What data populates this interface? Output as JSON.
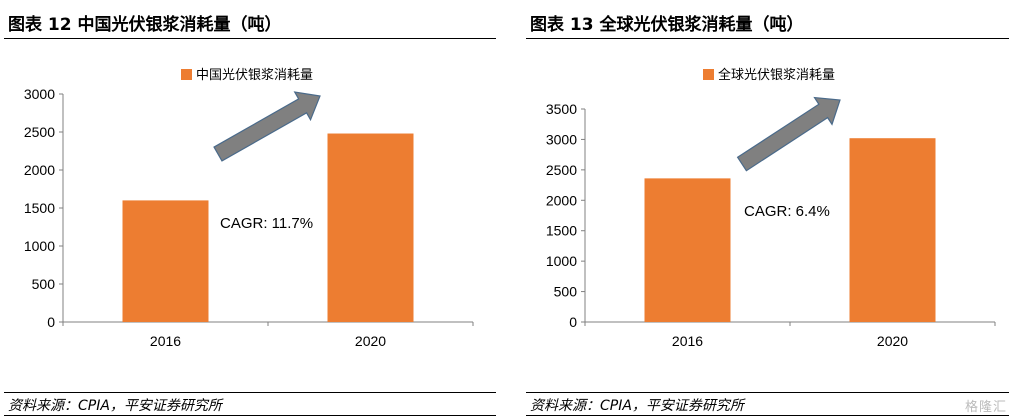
{
  "figures": [
    {
      "title": "图表 12   中国光伏银浆消耗量（吨）",
      "source": "资料来源：CPIA，平安证券研究所"
    },
    {
      "title": "图表 13   全球光伏银浆消耗量（吨）",
      "source": "资料来源：CPIA，平安证券研究所"
    }
  ],
  "watermark": "格隆汇",
  "chart_data": [
    {
      "type": "bar",
      "categories": [
        "2016",
        "2020"
      ],
      "series": [
        {
          "name": "中国光伏银浆消耗量",
          "values": [
            1600,
            2480
          ]
        }
      ],
      "ylim": [
        0,
        3000
      ],
      "yticks": [
        0,
        500,
        1000,
        1500,
        2000,
        2500,
        3000
      ],
      "annotation": "CAGR: 11.7%",
      "bar_color": "#ED7D31",
      "arrow_color": "#808080",
      "legend": "top-center",
      "grid": false
    },
    {
      "type": "bar",
      "categories": [
        "2016",
        "2020"
      ],
      "series": [
        {
          "name": "全球光伏银浆消耗量",
          "values": [
            2360,
            3020
          ]
        }
      ],
      "ylim": [
        0,
        3500
      ],
      "yticks": [
        0,
        500,
        1000,
        1500,
        2000,
        2500,
        3000,
        3500
      ],
      "annotation": "CAGR: 6.4%",
      "bar_color": "#ED7D31",
      "arrow_color": "#808080",
      "legend": "top-center",
      "grid": false
    }
  ]
}
